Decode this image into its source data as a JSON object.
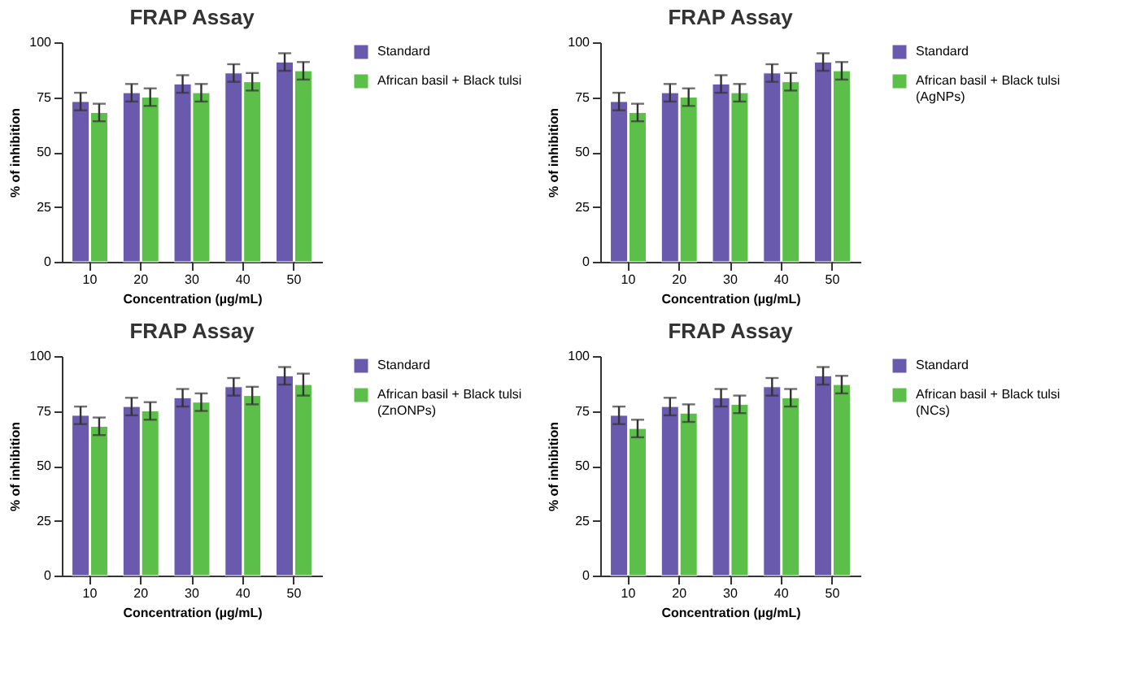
{
  "chart_data": [
    {
      "type": "bar",
      "title": "FRAP Assay",
      "xlabel": "Concentration (µg/mL)",
      "ylabel": "% of inhibition",
      "categories": [
        "10",
        "20",
        "30",
        "40",
        "50"
      ],
      "ylim": [
        0,
        100
      ],
      "yticks": [
        0,
        25,
        50,
        75,
        100
      ],
      "grid": false,
      "legend": "top right",
      "series": [
        {
          "name": "Standard",
          "color": "#6a5aad",
          "values": [
            73,
            77,
            81,
            86,
            91
          ],
          "errors": [
            4,
            4,
            4,
            4,
            4
          ]
        },
        {
          "name": "African basil + Black tulsi",
          "color": "#5cbf4a",
          "values": [
            68,
            75,
            77,
            82,
            87
          ],
          "errors": [
            4,
            4,
            4,
            4,
            4
          ]
        }
      ]
    },
    {
      "type": "bar",
      "title": "FRAP Assay",
      "xlabel": "Concentration (µg/mL)",
      "ylabel": "% of inhibition",
      "categories": [
        "10",
        "20",
        "30",
        "40",
        "50"
      ],
      "ylim": [
        0,
        100
      ],
      "yticks": [
        0,
        25,
        50,
        75,
        100
      ],
      "grid": false,
      "legend": "top right",
      "series": [
        {
          "name": "Standard",
          "color": "#6a5aad",
          "values": [
            73,
            77,
            81,
            86,
            91
          ],
          "errors": [
            4,
            4,
            4,
            4,
            4
          ]
        },
        {
          "name": "African basil + Black tulsi (AgNPs)",
          "color": "#5cbf4a",
          "values": [
            68,
            75,
            77,
            82,
            87
          ],
          "errors": [
            4,
            4,
            4,
            4,
            4
          ]
        }
      ]
    },
    {
      "type": "bar",
      "title": "FRAP Assay",
      "xlabel": "Concentration (µg/mL)",
      "ylabel": "% of inhibition",
      "categories": [
        "10",
        "20",
        "30",
        "40",
        "50"
      ],
      "ylim": [
        0,
        100
      ],
      "yticks": [
        0,
        25,
        50,
        75,
        100
      ],
      "grid": false,
      "legend": "top right",
      "series": [
        {
          "name": "Standard",
          "color": "#6a5aad",
          "values": [
            73,
            77,
            81,
            86,
            91
          ],
          "errors": [
            4,
            4,
            4,
            4,
            4
          ]
        },
        {
          "name": "African basil + Black tulsi (ZnONPs)",
          "color": "#5cbf4a",
          "values": [
            68,
            75,
            79,
            82,
            87
          ],
          "errors": [
            4,
            4,
            4,
            4,
            5
          ]
        }
      ]
    },
    {
      "type": "bar",
      "title": "FRAP Assay",
      "xlabel": "Concentration (µg/mL)",
      "ylabel": "% of inhibition",
      "categories": [
        "10",
        "20",
        "30",
        "40",
        "50"
      ],
      "ylim": [
        0,
        100
      ],
      "yticks": [
        0,
        25,
        50,
        75,
        100
      ],
      "grid": false,
      "legend": "top right",
      "series": [
        {
          "name": "Standard",
          "color": "#6a5aad",
          "values": [
            73,
            77,
            81,
            86,
            91
          ],
          "errors": [
            4,
            4,
            4,
            4,
            4
          ]
        },
        {
          "name": "African basil + Black tulsi (NCs)",
          "color": "#5cbf4a",
          "values": [
            67,
            74,
            78,
            81,
            87
          ],
          "errors": [
            4,
            4,
            4,
            4,
            4
          ]
        }
      ]
    }
  ]
}
